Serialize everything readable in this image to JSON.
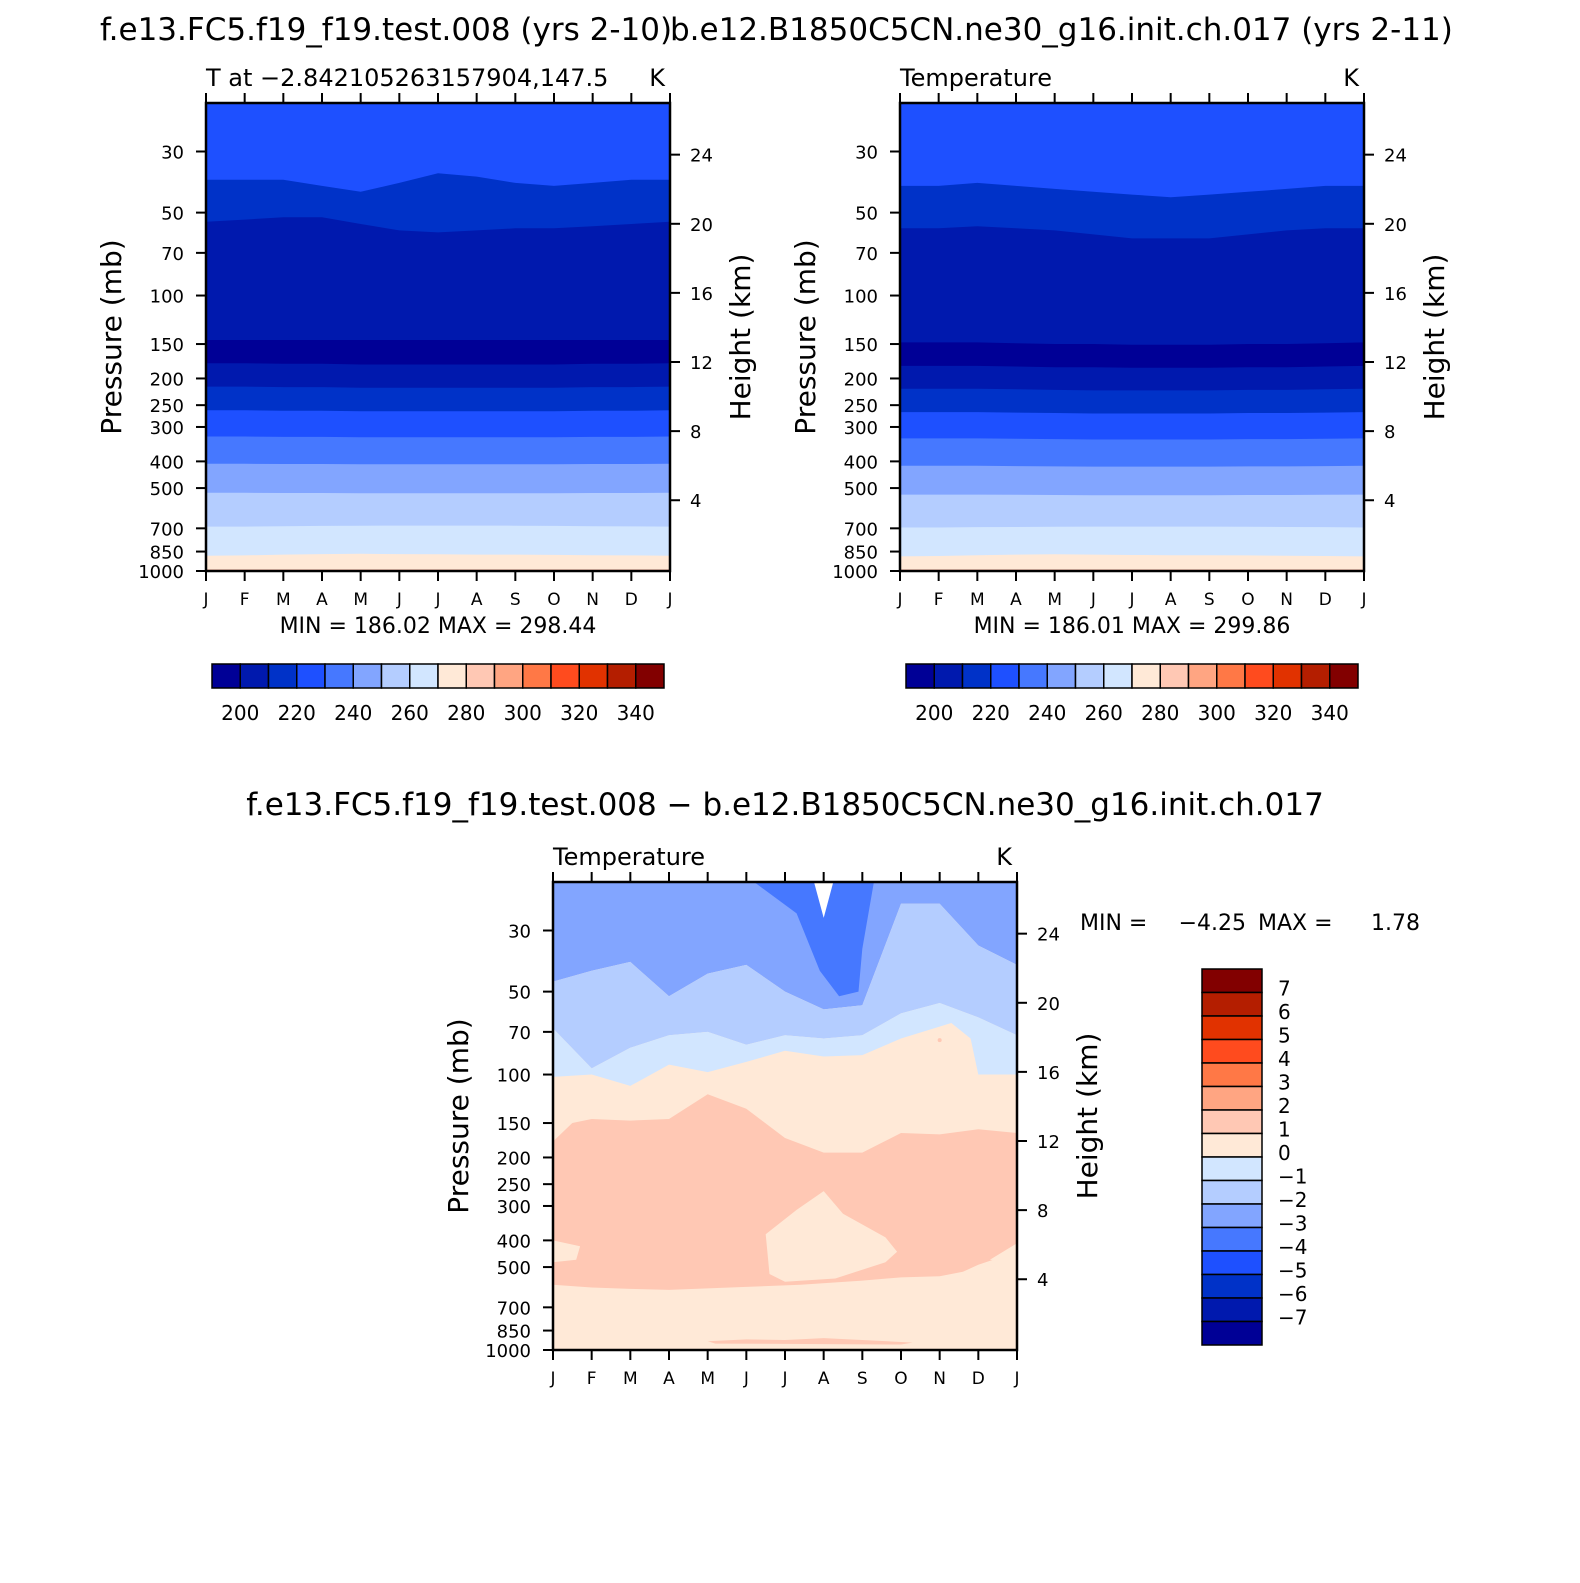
{
  "chart_data": [
    {
      "type": "contour",
      "title": "f.e13.FC5.f19_f19.test.008 (yrs 2-10)",
      "subtitle": "T at −2.842105263157904,147.5",
      "units": "K",
      "xlabel": "",
      "ylabel": "Pressure (mb)",
      "ylabel_right": "Height (km)",
      "x_ticks": [
        "J",
        "F",
        "M",
        "A",
        "M",
        "J",
        "J",
        "A",
        "S",
        "O",
        "N",
        "D",
        "J"
      ],
      "y_ticks": [
        "30",
        "50",
        "70",
        "100",
        "150",
        "200",
        "250",
        "300",
        "400",
        "500",
        "700",
        "850",
        "1000"
      ],
      "y_ticks_right": [
        "24",
        "20",
        "16",
        "12",
        "8",
        "4"
      ],
      "ylim": [
        1000,
        20
      ],
      "stats_text": "MIN = 186.02 MAX = 298.44",
      "min": 186.02,
      "max": 298.44,
      "levels": [
        200,
        210,
        220,
        230,
        240,
        250,
        260,
        270,
        280,
        290,
        300,
        310,
        320,
        330,
        340
      ],
      "label_bar_text": [
        "200",
        "220",
        "240",
        "260",
        "280",
        "300",
        "320",
        "340"
      ],
      "contour_lines": [
        {
          "level": 210,
          "pressure": [
            38,
            38,
            38,
            40,
            42,
            39,
            36,
            37,
            39,
            40,
            39,
            38,
            38
          ]
        },
        {
          "level": 200,
          "pressure": [
            54,
            53,
            52,
            52,
            55,
            58,
            59,
            58,
            57,
            57,
            56,
            55,
            54
          ]
        },
        {
          "level": 200,
          "pressure": [
            145,
            145,
            145,
            145,
            145,
            145,
            145,
            145,
            145,
            145,
            145,
            145,
            145
          ]
        },
        {
          "level": 210,
          "pressure": [
            176,
            176,
            177,
            177,
            178,
            178,
            178,
            178,
            178,
            178,
            177,
            177,
            176
          ]
        },
        {
          "level": 220,
          "pressure": [
            214,
            214,
            215,
            215,
            216,
            216,
            216,
            216,
            216,
            216,
            215,
            215,
            214
          ]
        },
        {
          "level": 230,
          "pressure": [
            261,
            261,
            262,
            262,
            263,
            263,
            263,
            263,
            263,
            263,
            262,
            262,
            261
          ]
        },
        {
          "level": 240,
          "pressure": [
            325,
            325,
            326,
            326,
            327,
            327,
            327,
            327,
            327,
            327,
            326,
            326,
            325
          ]
        },
        {
          "level": 250,
          "pressure": [
            408,
            408,
            409,
            409,
            410,
            410,
            410,
            410,
            410,
            410,
            409,
            409,
            408
          ]
        },
        {
          "level": 260,
          "pressure": [
            520,
            520,
            521,
            521,
            522,
            522,
            522,
            522,
            522,
            522,
            521,
            521,
            520
          ]
        },
        {
          "level": 270,
          "pressure": [
            690,
            690,
            688,
            686,
            685,
            684,
            684,
            684,
            685,
            686,
            688,
            689,
            690
          ]
        },
        {
          "level": 280,
          "pressure": [
            880,
            878,
            872,
            868,
            866,
            868,
            870,
            872,
            872,
            874,
            876,
            878,
            880
          ]
        },
        {
          "level": 290,
          "pressure": [
            985,
            985,
            985,
            985,
            985,
            985,
            985,
            985,
            985,
            985,
            985,
            985,
            985
          ]
        }
      ]
    },
    {
      "type": "contour",
      "title": "b.e12.B1850C5CN.ne30_g16.init.ch.017 (yrs 2-11)",
      "subtitle": "Temperature",
      "units": "K",
      "xlabel": "",
      "ylabel": "Pressure (mb)",
      "ylabel_right": "Height (km)",
      "x_ticks": [
        "J",
        "F",
        "M",
        "A",
        "M",
        "J",
        "J",
        "A",
        "S",
        "O",
        "N",
        "D",
        "J"
      ],
      "y_ticks": [
        "30",
        "50",
        "70",
        "100",
        "150",
        "200",
        "250",
        "300",
        "400",
        "500",
        "700",
        "850",
        "1000"
      ],
      "y_ticks_right": [
        "24",
        "20",
        "16",
        "12",
        "8",
        "4"
      ],
      "ylim": [
        1000,
        20
      ],
      "stats_text": "MIN = 186.01 MAX = 299.86",
      "min": 186.01,
      "max": 299.86,
      "levels": [
        200,
        210,
        220,
        230,
        240,
        250,
        260,
        270,
        280,
        290,
        300,
        310,
        320,
        330,
        340
      ],
      "label_bar_text": [
        "200",
        "220",
        "240",
        "260",
        "280",
        "300",
        "320",
        "340"
      ],
      "contour_lines": [
        {
          "level": 210,
          "pressure": [
            40,
            40,
            39,
            40,
            41,
            42,
            43,
            44,
            43,
            42,
            41,
            40,
            40
          ]
        },
        {
          "level": 200,
          "pressure": [
            57,
            57,
            56,
            57,
            58,
            60,
            62,
            62,
            62,
            60,
            58,
            57,
            57
          ]
        },
        {
          "level": 200,
          "pressure": [
            148,
            148,
            148,
            149,
            150,
            150,
            151,
            151,
            151,
            150,
            150,
            149,
            148
          ]
        },
        {
          "level": 210,
          "pressure": [
            180,
            180,
            180,
            181,
            182,
            182,
            183,
            183,
            183,
            182,
            182,
            181,
            180
          ]
        },
        {
          "level": 220,
          "pressure": [
            218,
            218,
            218,
            219,
            220,
            221,
            221,
            221,
            221,
            220,
            220,
            219,
            218
          ]
        },
        {
          "level": 230,
          "pressure": [
            265,
            265,
            265,
            266,
            267,
            268,
            268,
            268,
            268,
            267,
            267,
            266,
            265
          ]
        },
        {
          "level": 240,
          "pressure": [
            330,
            330,
            330,
            331,
            332,
            333,
            333,
            333,
            333,
            332,
            332,
            331,
            330
          ]
        },
        {
          "level": 250,
          "pressure": [
            415,
            415,
            415,
            416,
            417,
            418,
            418,
            418,
            418,
            417,
            417,
            416,
            415
          ]
        },
        {
          "level": 260,
          "pressure": [
            528,
            528,
            528,
            529,
            530,
            531,
            531,
            531,
            531,
            530,
            530,
            529,
            528
          ]
        },
        {
          "level": 270,
          "pressure": [
            695,
            695,
            693,
            692,
            691,
            690,
            690,
            690,
            690,
            691,
            692,
            693,
            695
          ]
        },
        {
          "level": 280,
          "pressure": [
            885,
            882,
            876,
            872,
            870,
            872,
            875,
            876,
            876,
            878,
            880,
            882,
            885
          ]
        },
        {
          "level": 290,
          "pressure": [
            986,
            986,
            986,
            986,
            986,
            986,
            986,
            986,
            986,
            986,
            986,
            986,
            986
          ]
        }
      ]
    },
    {
      "type": "contour",
      "title": "f.e13.FC5.f19_f19.test.008 − b.e12.B1850C5CN.ne30_g16.init.ch.017",
      "subtitle": "Temperature",
      "units": "K",
      "xlabel": "",
      "ylabel": "Pressure (mb)",
      "ylabel_right": "Height (km)",
      "x_ticks": [
        "J",
        "F",
        "M",
        "A",
        "M",
        "J",
        "J",
        "A",
        "S",
        "O",
        "N",
        "D",
        "J"
      ],
      "y_ticks": [
        "30",
        "50",
        "70",
        "100",
        "150",
        "200",
        "250",
        "300",
        "400",
        "500",
        "700",
        "850",
        "1000"
      ],
      "y_ticks_right": [
        "24",
        "20",
        "16",
        "12",
        "8",
        "4"
      ],
      "ylim": [
        1000,
        20
      ],
      "stats_label_min": "MIN =",
      "stats_value_min": "−4.25",
      "stats_label_max": "MAX =",
      "stats_value_max": "1.78",
      "min": -4.25,
      "max": 1.78,
      "levels": [
        -7,
        -6,
        -5,
        -4,
        -3,
        -2,
        -1,
        0,
        1,
        2,
        3,
        4,
        5,
        6,
        7
      ],
      "label_bar_text": [
        "7",
        "6",
        "5",
        "4",
        "3",
        "2",
        "1",
        "0",
        "−1",
        "−2",
        "−3",
        "−4",
        "−5",
        "−6",
        "−7"
      ]
    }
  ],
  "colors": {
    "cmap": [
      "#000096",
      "#0019AE",
      "#0032C8",
      "#1E50FF",
      "#4678FF",
      "#82A5FF",
      "#B4CDFF",
      "#D2E6FF",
      "#FFE9D7",
      "#FFC8B4",
      "#FFA582",
      "#FF7846",
      "#FF4B1E",
      "#E13200",
      "#B41E00",
      "#820000"
    ],
    "diff_background": "#FFE9D7"
  }
}
